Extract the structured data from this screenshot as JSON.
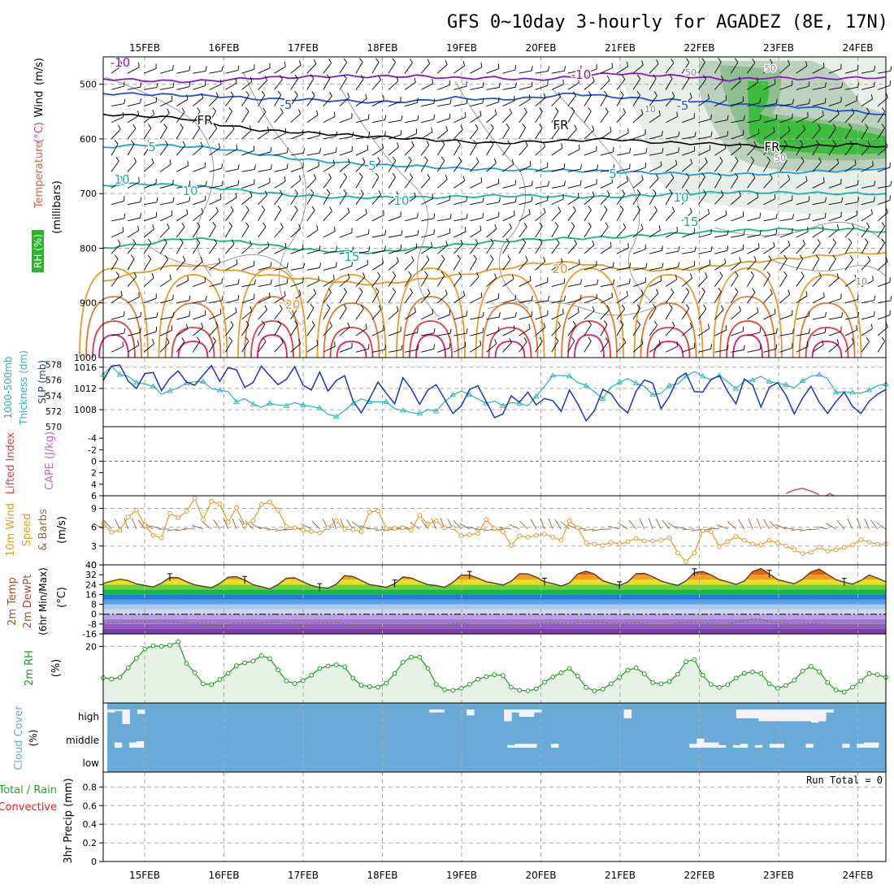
{
  "title": "GFS 0~10day 3-hourly for AGADEZ (8E, 17N)",
  "colors": {
    "rh_fill": "#22bb22",
    "wind_barb": "#000000",
    "temp_minus10": "#8a14c8",
    "temp_minus5": "#1e50dc",
    "temp_freezing": "#000000",
    "temp_5": "#1e9be6",
    "temp_10": "#14b4b4",
    "temp_15": "#14b48c",
    "temp_20": "#e69a28",
    "temp_25": "#e6782d",
    "temp_30": "#e63c3c",
    "slp": "#1e32c8",
    "thickness": "#28b4b4",
    "lifted_index": "#e04040",
    "cape": "#c864c8",
    "wind_speed": "#e69a28",
    "surface_barb": "#8b6a4a",
    "rh2m": "#229922",
    "cloud": "#6aaad6",
    "cloud_clear": "#f5f2f8",
    "precip_total": "#22aa22",
    "precip_convective": "#e02020"
  },
  "chart_data": [
    {
      "panel": "upper_air",
      "type": "contour",
      "labels": {
        "rh": "RH (%)",
        "temperature": "Temperature",
        "temperature_unit": "(°C)",
        "wind": "Wind",
        "wind_unit": "(m/s)",
        "axis": "(millibars)"
      },
      "dates": [
        "15FEB",
        "16FEB",
        "17FEB",
        "18FEB",
        "19FEB",
        "20FEB",
        "21FEB",
        "22FEB",
        "23FEB",
        "24FEB"
      ],
      "y_ticks": [
        500,
        600,
        700,
        800,
        900,
        1000
      ],
      "ylim": [
        450,
        1000
      ],
      "isotherms": [
        {
          "label": "-10",
          "level": -10,
          "mb": [
            490,
            493,
            495,
            493,
            488,
            487,
            485,
            486,
            485,
            489,
            488,
            492,
            487,
            480,
            483,
            486,
            492,
            488,
            490,
            489,
            487
          ]
        },
        {
          "label": "-5",
          "level": -5,
          "mb": [
            517,
            518,
            520,
            522,
            527,
            528,
            530,
            533,
            531,
            525,
            528,
            525,
            517,
            523,
            528,
            530,
            537,
            539,
            542,
            549,
            555
          ]
        },
        {
          "label": "FR",
          "level": 0,
          "mb": [
            555,
            558,
            562,
            574,
            584,
            588,
            592,
            596,
            600,
            604,
            608,
            605,
            603,
            600,
            606,
            608,
            610,
            615,
            614,
            610,
            614
          ]
        },
        {
          "label": "5",
          "level": 5,
          "mb": [
            615,
            611,
            613,
            618,
            628,
            637,
            643,
            648,
            650,
            654,
            656,
            657,
            658,
            660,
            662,
            664,
            665,
            664,
            660,
            658,
            653
          ]
        },
        {
          "label": "10",
          "level": 10,
          "mb": [
            685,
            682,
            685,
            690,
            698,
            704,
            707,
            707,
            707,
            706,
            704,
            704,
            706,
            706,
            703,
            700,
            697,
            698,
            699,
            700,
            700
          ]
        },
        {
          "label": "15",
          "level": 15,
          "mb": [
            799,
            793,
            782,
            785,
            792,
            802,
            806,
            808,
            800,
            794,
            788,
            784,
            782,
            780,
            776,
            772,
            768,
            766,
            765,
            765,
            770
          ]
        },
        {
          "label": "20",
          "level": 20,
          "mb": [
            860,
            843,
            830,
            838,
            848,
            855,
            862,
            866,
            858,
            850,
            840,
            828,
            826,
            835,
            840,
            838,
            830,
            822,
            816,
            810,
            808
          ]
        }
      ],
      "contour_labels": [
        "-10",
        "-10",
        "-5",
        "-5",
        "FR",
        "FR",
        "FR",
        "5",
        "5",
        "5",
        "10",
        "10",
        "10",
        "10",
        "15",
        "15",
        "20",
        "20",
        "50",
        "50",
        "50",
        "10",
        "10"
      ]
    },
    {
      "panel": "slp_thickness",
      "type": "line",
      "labels": {
        "thickness": "1000-500mb",
        "thickness_sub": "Thickness (dm)",
        "slp": "SLP (mb)"
      },
      "thickness_ticks": [
        570,
        572,
        574,
        576,
        578
      ],
      "slp_ticks": [
        1008,
        1012,
        1016
      ],
      "slp": [
        1013.5,
        1016.2,
        1016.4,
        1013.4,
        1012.0,
        1014.8,
        1015.0,
        1011.6,
        1013.9,
        1015.3,
        1013.2,
        1012.6,
        1014.5,
        1016.3,
        1013.3,
        1015.9,
        1015.5,
        1012.2,
        1013.1,
        1016.2,
        1014.4,
        1012.7,
        1013.7,
        1016.1,
        1012.6,
        1011.7,
        1015.1,
        1011.5,
        1013.5,
        1014.4,
        1009.7,
        1007.4,
        1010.1,
        1013.2,
        1011.1,
        1009.1,
        1014.0,
        1011.9,
        1009.0,
        1011.7,
        1012.7,
        1010.0,
        1007.3,
        1008.7,
        1011.8,
        1012.5,
        1009.5,
        1006.5,
        1007.2,
        1010.6,
        1009.4,
        1011.3,
        1008.9,
        1010.1,
        1009.7,
        1007.7,
        1011.7,
        1009.1,
        1005.9,
        1007.8,
        1011.8,
        1011.0,
        1008.7,
        1007.4,
        1011.5,
        1013.6,
        1013.0,
        1008.2,
        1010.5,
        1013.9,
        1014.9,
        1011.4,
        1011.3,
        1013.7,
        1014.4,
        1011.4,
        1009.1,
        1013.8,
        1012.6,
        1008.5,
        1012.2,
        1013.1,
        1010.7,
        1007.2,
        1010.2,
        1012.4,
        1009.4,
        1007.3,
        1009.5,
        1011.3,
        1008.6,
        1007.3,
        1009.6,
        1010.9,
        1011.8
      ],
      "thickness": [
        576.7,
        577.8,
        576.7,
        576.5,
        575.7,
        575.5,
        575.2,
        574.2,
        574.6,
        575.0,
        575.6,
        575.8,
        575.8,
        574.9,
        574.7,
        574.5,
        573.2,
        573.6,
        572.9,
        572.5,
        573.0,
        572.8,
        572.7,
        573.1,
        572.8,
        572.6,
        572.4,
        571.6,
        571.3,
        572.1,
        573.0,
        573.6,
        573.2,
        573.2,
        573.2,
        572.3,
        572.1,
        571.8,
        571.7,
        572.2,
        572.0,
        573.2,
        574.1,
        574.6,
        574.1,
        573.6,
        573.0,
        573.3,
        572.7,
        573.1,
        573.0,
        572.7,
        573.9,
        575.2,
        576.6,
        576.6,
        576.5,
        575.7,
        575.3,
        574.5,
        573.6,
        575.1,
        575.7,
        576.2,
        575.6,
        575.2,
        574.1,
        574.3,
        575.3,
        575.5,
        576.5,
        577.1,
        576.5,
        576.0,
        576.6,
        575.8,
        574.9,
        575.9,
        576.0,
        576.5,
        575.8,
        575.6,
        575.4,
        575.0,
        575.9,
        576.5,
        576.7,
        576.2,
        574.4,
        574.5,
        574.4,
        574.3,
        574.7,
        575.3,
        575.5
      ],
      "ylim_thickness": [
        570,
        578.9
      ],
      "ylim_slp": [
        1004.8,
        1017.8
      ]
    },
    {
      "panel": "lifted_index_cape",
      "type": "line",
      "labels": {
        "li": "Lifted Index",
        "cape": "CAPE (J/kg)"
      },
      "ticks": [
        "-4",
        "-2",
        "0",
        "2",
        "4",
        "6"
      ],
      "ylim": [
        -6,
        6
      ],
      "lifted_index": [
        [
          82,
          5.6
        ],
        [
          83,
          5.0
        ],
        [
          84,
          4.7
        ],
        [
          85,
          5.2
        ],
        [
          86,
          5.8
        ]
      ]
    },
    {
      "panel": "wind10m",
      "type": "line",
      "labels": {
        "line1": "10m Wind",
        "line2": "Speed",
        "line3": "& Barbs",
        "unit": "(m/s)"
      },
      "ticks": [
        0,
        3,
        6,
        9
      ],
      "ylim": [
        0,
        11
      ],
      "speed": [
        6.6,
        5.2,
        5.5,
        7.6,
        8.7,
        6.3,
        4.7,
        4.3,
        8.2,
        7.5,
        8.5,
        10.6,
        7.2,
        10.1,
        9.7,
        6.8,
        9.1,
        6.3,
        7.0,
        9.6,
        10.0,
        8.7,
        6.1,
        5.9,
        5.5,
        5.3,
        5.1,
        5.9,
        7.0,
        5.7,
        5.6,
        5.3,
        8.4,
        8.6,
        5.8,
        5.8,
        5.9,
        5.5,
        7.9,
        6.5,
        7.0,
        5.9,
        5.9,
        4.6,
        4.8,
        5.0,
        7.2,
        5.8,
        5.3,
        3.1,
        4.6,
        4.4,
        4.7,
        4.9,
        4.4,
        3.9,
        7.0,
        5.9,
        3.5,
        3.3,
        3.1,
        3.6,
        3.3,
        3.7,
        4.2,
        3.8,
        3.8,
        3.9,
        4.3,
        1.9,
        0.5,
        1.9,
        5.4,
        5.3,
        2.9,
        3.7,
        4.5,
        3.9,
        3.3,
        3.2,
        3.9,
        3.5,
        3.0,
        2.4,
        1.8,
        2.0,
        2.8,
        2.2,
        2.4,
        2.8,
        3.2,
        4.0,
        3.6,
        3.3,
        3.3
      ]
    },
    {
      "panel": "temp2m",
      "type": "area",
      "labels": {
        "line1": "2m Temp",
        "line2": "2m DewPt",
        "line3": "(6hr Min/Max)",
        "unit": "(°C)"
      },
      "ticks": [
        "40",
        "32",
        "24",
        "16",
        "8",
        "0",
        "-8",
        "-16"
      ],
      "ylim": [
        -16,
        40
      ],
      "temperature": [
        25.0,
        26.8,
        28.4,
        27.2,
        24.6,
        23.3,
        22.0,
        25.2,
        29.8,
        29.6,
        26.3,
        23.8,
        22.6,
        21.5,
        24.9,
        30.0,
        30.4,
        27.6,
        23.9,
        22.3,
        20.5,
        24.0,
        29.2,
        29.5,
        26.2,
        23.3,
        21.7,
        21.1,
        24.4,
        31.3,
        30.5,
        27.2,
        24.0,
        23.0,
        21.8,
        24.7,
        30.2,
        29.3,
        26.4,
        24.0,
        23.2,
        21.8,
        25.8,
        31.7,
        31.7,
        29.2,
        26.3,
        25.1,
        23.6,
        26.6,
        32.8,
        32.6,
        30.1,
        26.2,
        24.8,
        22.8,
        25.3,
        32.6,
        34.9,
        32.4,
        27.1,
        25.0,
        23.3,
        26.1,
        32.8,
        33.1,
        30.4,
        26.9,
        24.9,
        23.4,
        27.0,
        33.8,
        34.6,
        31.8,
        28.0,
        26.2,
        24.2,
        26.9,
        34.6,
        36.9,
        32.6,
        28.0,
        26.3,
        24.7,
        28.3,
        34.3,
        36.5,
        32.2,
        28.0,
        26.0,
        24.4,
        27.3,
        31.8,
        29.2,
        26.2
      ],
      "dewpoint": [
        -7.7,
        -6.8,
        -6.6,
        -5.9,
        -6.0,
        -5.8,
        -6.2,
        -5.8,
        -6.3,
        -6.6,
        -7.2,
        -7.4,
        -8.1,
        -8.0,
        -8.2,
        -8.5,
        -7.5,
        -7.5,
        -7.4,
        -7.2,
        -6.5,
        -6.4,
        -7.3,
        -8.2,
        -8.2,
        -8.0,
        -7.2,
        -7.2,
        -6.8,
        -7.9,
        -8.7,
        -8.9,
        -9.7,
        -9.4,
        -9.4,
        -9.1,
        -9.6,
        -9.5,
        -9.7,
        -9.1,
        -8.9,
        -8.8,
        -7.8,
        -7.2,
        -8.2,
        -8.6,
        -9.1,
        -8.9,
        -9.3,
        -8.3,
        -8.6,
        -8.5,
        -8.1,
        -7.4,
        -7.6,
        -7.5,
        -8.3,
        -7.0,
        -6.6,
        -6.9,
        -6.8,
        -8.0,
        -7.8,
        -7.5,
        -6.9,
        -8.0,
        -8.7,
        -8.4,
        -8.5,
        -7.4,
        -6.7,
        -6.9,
        -7.1,
        -8.0,
        -8.4,
        -8.5,
        -6.6,
        -5.1,
        -3.9,
        -4.1,
        -6.1,
        -6.8,
        -7.6,
        -8.4,
        -8.1,
        -7.6,
        -7.9,
        -8.2,
        -9.6,
        -10.0,
        -9.6,
        -8.6,
        -8.5,
        -8.8,
        -9.5
      ]
    },
    {
      "panel": "rh2m",
      "type": "area",
      "labels": {
        "name": "2m RH",
        "unit": "(%)"
      },
      "ticks": [
        20
      ],
      "ylim": [
        0,
        24.4
      ],
      "rh": [
        8.9,
        8.5,
        9.0,
        12.4,
        15.8,
        19.1,
        20.2,
        20.0,
        20.4,
        21.6,
        14.0,
        10.7,
        6.8,
        6.5,
        8.3,
        10.5,
        13.2,
        14.2,
        14.8,
        16.7,
        15.7,
        11.7,
        7.8,
        6.9,
        7.9,
        9.8,
        12.2,
        13.1,
        13.5,
        12.8,
        8.8,
        6.3,
        5.8,
        5.6,
        7.0,
        10.4,
        14.4,
        16.2,
        16.2,
        12.2,
        6.6,
        4.7,
        4.5,
        5.2,
        6.6,
        8.4,
        9.3,
        10.0,
        9.7,
        5.6,
        4.5,
        4.3,
        5.0,
        7.4,
        9.2,
        10.7,
        12.2,
        9.5,
        5.5,
        4.3,
        4.9,
        6.8,
        9.1,
        11.6,
        12.4,
        10.3,
        7.2,
        6.8,
        7.6,
        10.2,
        14.6,
        15.3,
        9.8,
        6.6,
        5.5,
        6.5,
        8.8,
        10.5,
        11.0,
        10.4,
        6.8,
        5.2,
        6.2,
        8.0,
        11.3,
        12.9,
        11.1,
        7.2,
        4.6,
        3.9,
        5.6,
        7.8,
        10.4,
        10.0,
        9.1
      ]
    },
    {
      "panel": "cloud",
      "type": "bar",
      "labels": {
        "name": "Cloud Cover",
        "unit": "(%)",
        "levels": [
          "high",
          "middle",
          "low"
        ]
      },
      "high": [
        20,
        10,
        100,
        0,
        30,
        0,
        0,
        0,
        0,
        0,
        0,
        0,
        0,
        0,
        0,
        0,
        0,
        0,
        0,
        0,
        0,
        0,
        0,
        0,
        0,
        0,
        0,
        0,
        0,
        0,
        0,
        0,
        0,
        0,
        0,
        0,
        0,
        0,
        0,
        0,
        0,
        0,
        0,
        20,
        20,
        0,
        0,
        0,
        40,
        0,
        0,
        0,
        0,
        80,
        20,
        50,
        50,
        20,
        0,
        0,
        0,
        0,
        0,
        0,
        0,
        0,
        0,
        0,
        0,
        60,
        0,
        0,
        0,
        0,
        0,
        0,
        0,
        0,
        0,
        0,
        0,
        0,
        0,
        0,
        60,
        60,
        60,
        80,
        80,
        80,
        80,
        80,
        80,
        80,
        90,
        80,
        20,
        0,
        0,
        0,
        0,
        0,
        0,
        0
      ],
      "middle": [
        0,
        40,
        0,
        40,
        50,
        0,
        0,
        0,
        0,
        0,
        0,
        0,
        0,
        0,
        0,
        0,
        0,
        0,
        0,
        0,
        0,
        0,
        0,
        0,
        0,
        0,
        0,
        0,
        0,
        0,
        0,
        0,
        0,
        0,
        0,
        0,
        0,
        0,
        0,
        0,
        0,
        0,
        0,
        0,
        0,
        0,
        0,
        0,
        0,
        0,
        0,
        0,
        0,
        0,
        0,
        20,
        30,
        30,
        30,
        0,
        0,
        30,
        0,
        0,
        0,
        0,
        0,
        0,
        0,
        0,
        0,
        0,
        0,
        0,
        0,
        0,
        0,
        0,
        0,
        0,
        30,
        70,
        40,
        40,
        20,
        0,
        20,
        30,
        0,
        20,
        0,
        30,
        30,
        0,
        0,
        0,
        30,
        0,
        0,
        0,
        0,
        30,
        0,
        30,
        40,
        40,
        0
      ]
    },
    {
      "panel": "precip",
      "type": "bar",
      "labels": {
        "line1": "Total / Rain",
        "line2": "Convective",
        "axis": "3hr Precip (mm)",
        "run_total": "Run Total = 0"
      },
      "ticks": [
        "0",
        "0.2",
        "0.4",
        "0.6",
        "0.8"
      ],
      "ylim": [
        0,
        0.96
      ],
      "values": []
    }
  ]
}
